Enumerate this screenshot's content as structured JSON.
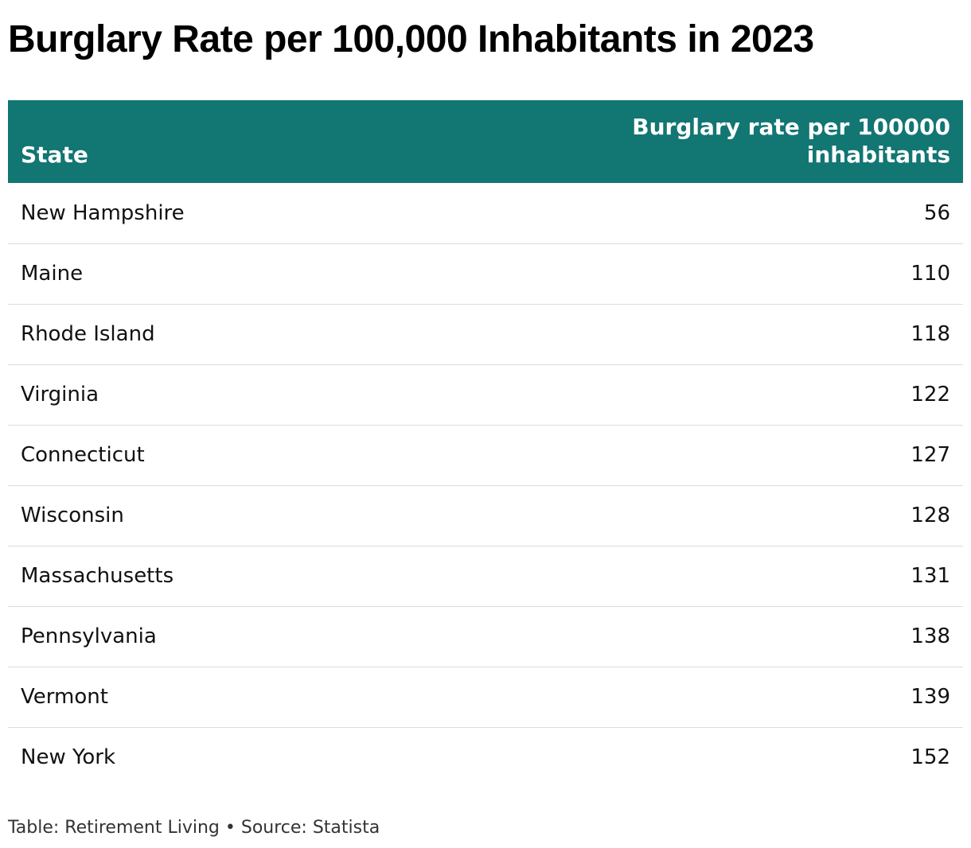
{
  "title": "Burglary Rate per 100,000 Inhabitants in 2023",
  "colors": {
    "header_background": "#127673",
    "header_text": "#ffffff",
    "row_divider": "#dcdcdc"
  },
  "chart_data": {
    "type": "table",
    "title": "Burglary Rate per 100,000 Inhabitants in 2023",
    "columns": [
      "State",
      "Burglary rate per 100000 inhabitants"
    ],
    "rows": [
      {
        "state": "New Hampshire",
        "rate": "56"
      },
      {
        "state": "Maine",
        "rate": "110"
      },
      {
        "state": "Rhode Island",
        "rate": "118"
      },
      {
        "state": "Virginia",
        "rate": "122"
      },
      {
        "state": "Connecticut",
        "rate": "127"
      },
      {
        "state": "Wisconsin",
        "rate": "128"
      },
      {
        "state": "Massachusetts",
        "rate": "131"
      },
      {
        "state": "Pennsylvania",
        "rate": "138"
      },
      {
        "state": "Vermont",
        "rate": "139"
      },
      {
        "state": "New York",
        "rate": "152"
      }
    ]
  },
  "footer": {
    "text": "Table: Retirement Living • Source: Statista"
  }
}
